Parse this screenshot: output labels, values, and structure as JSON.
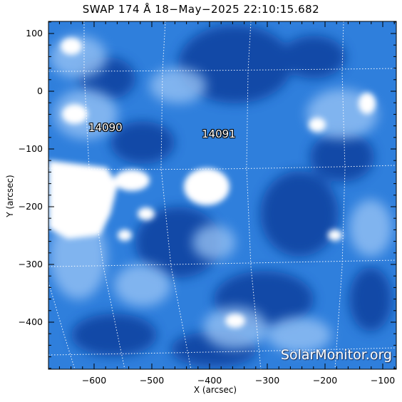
{
  "title": "SWAP 174 Å 18−May−2025 22:10:15.682",
  "x_axis": {
    "label": "X (arcsec)",
    "ticks": [
      "−600",
      "−500",
      "−400",
      "−300",
      "−200",
      "−100"
    ]
  },
  "y_axis": {
    "label": "Y (arcsec)",
    "ticks": [
      "100",
      "0",
      "−100",
      "−200",
      "−300",
      "−400"
    ]
  },
  "active_regions": [
    "14090",
    "14091"
  ],
  "watermark": "SolarMonitor.org",
  "colors": {
    "deep": "#0a3d9c",
    "mid": "#2f7fdc",
    "light": "#9cc6f6",
    "bright": "#ffffff"
  }
}
